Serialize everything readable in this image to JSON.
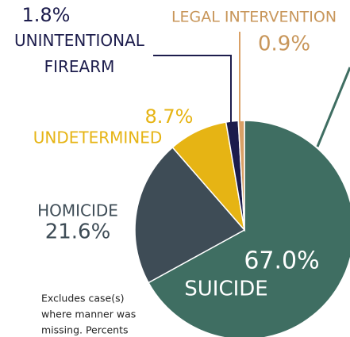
{
  "chart_data": {
    "type": "pie",
    "categories": [
      "SUICIDE",
      "HOMICIDE",
      "UNDETERMINED",
      "UNINTENTIONAL\nFIREARM",
      "LEGAL INTERVENTION"
    ],
    "values": [
      67.0,
      21.6,
      8.7,
      1.8,
      0.9
    ],
    "value_labels": [
      "67.0%",
      "21.6%",
      "8.7%",
      "1.8%",
      "0.9%"
    ],
    "colors": [
      "#3f6e62",
      "#3e4c56",
      "#e6b414",
      "#1c1c4c",
      "#d9a066"
    ],
    "note": [
      "Excludes case(s)",
      "where manner was",
      "missing. Percents"
    ]
  }
}
